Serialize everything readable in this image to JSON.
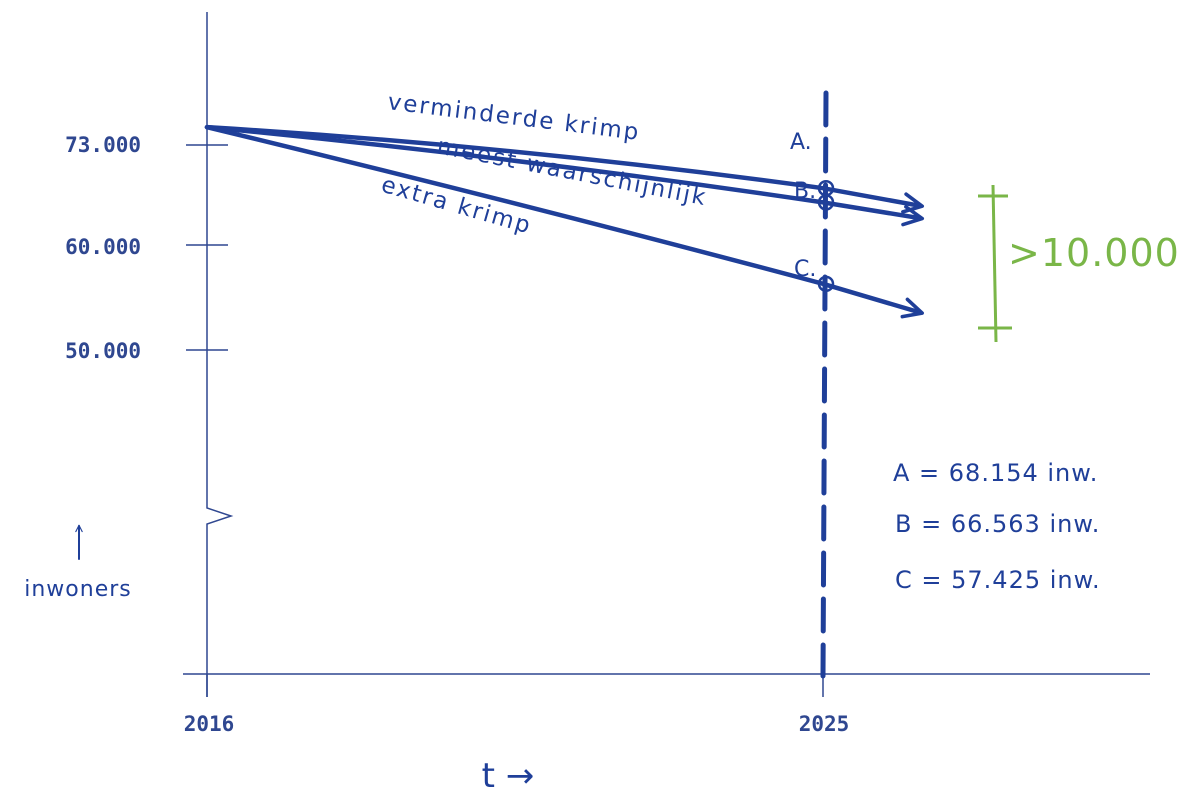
{
  "chart_data": {
    "type": "line",
    "title": "",
    "xlabel": "t →",
    "ylabel": "inwoners",
    "x_ticks": [
      "2016",
      "2025"
    ],
    "y_ticks": [
      "73.000",
      "60.000",
      "50.000"
    ],
    "y_axis_break": true,
    "series": [
      {
        "name": "verminderde krimp",
        "point_label": "A.",
        "start": {
          "x": 2016,
          "y": 75000
        },
        "end": {
          "x": 2025,
          "y": 68154
        }
      },
      {
        "name": "meest waarschijnlijk",
        "point_label": "B.",
        "start": {
          "x": 2016,
          "y": 75000
        },
        "end": {
          "x": 2025,
          "y": 66563
        }
      },
      {
        "name": "extra krimp",
        "point_label": "C.",
        "start": {
          "x": 2016,
          "y": 75000
        },
        "end": {
          "x": 2025,
          "y": 57425
        }
      }
    ],
    "marker_year": "2025",
    "annotations": {
      "difference": ">10.000",
      "values": [
        "A = 68.154  inw.",
        "B = 66.563  inw.",
        "C = 57.425  inw."
      ]
    },
    "colors": {
      "ink": "#1f3f99",
      "axis": "#2f4790",
      "difference": "#7ab648"
    }
  }
}
